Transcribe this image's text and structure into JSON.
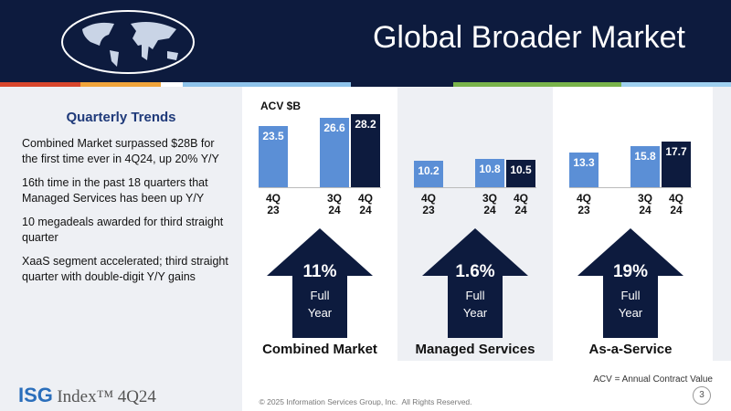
{
  "header": {
    "title": "Global Broader Market"
  },
  "sidebar": {
    "title": "Quarterly Trends",
    "points": [
      "Combined Market surpassed $28B for the first time ever in 4Q24, up 20% Y/Y",
      "16th time in the past 18 quarters that Managed Services has been up Y/Y",
      "10 megadeals awarded for third straight quarter",
      "XaaS segment accelerated; third straight quarter with double-digit Y/Y gains"
    ]
  },
  "units_label": "ACV $B",
  "chart_data": [
    {
      "type": "bar",
      "title": "Combined Market",
      "categories": [
        "4Q 23",
        "3Q 24",
        "4Q 24"
      ],
      "values": [
        23.5,
        26.6,
        28.2
      ],
      "colors": [
        "#5b8fd6",
        "#5b8fd6",
        "#0d1b3e"
      ],
      "growth": "11%",
      "growth_label": "Full Year"
    },
    {
      "type": "bar",
      "title": "Managed Services",
      "categories": [
        "4Q 23",
        "3Q 24",
        "4Q 24"
      ],
      "values": [
        10.2,
        10.8,
        10.5
      ],
      "colors": [
        "#5b8fd6",
        "#5b8fd6",
        "#0d1b3e"
      ],
      "growth": "1.6%",
      "growth_label": "Full Year"
    },
    {
      "type": "bar",
      "title": "As-a-Service",
      "categories": [
        "4Q 23",
        "3Q 24",
        "4Q 24"
      ],
      "values": [
        13.3,
        15.8,
        17.7
      ],
      "colors": [
        "#5b8fd6",
        "#5b8fd6",
        "#0d1b3e"
      ],
      "growth": "19%",
      "growth_label": "Full Year"
    }
  ],
  "footer": {
    "logo": "ISG",
    "logo_text": "Index™",
    "period": "4Q24",
    "note": "ACV = Annual Contract Value",
    "copyright": "© 2025 Information Services Group, Inc.  All Rights Reserved.",
    "page": "3"
  }
}
